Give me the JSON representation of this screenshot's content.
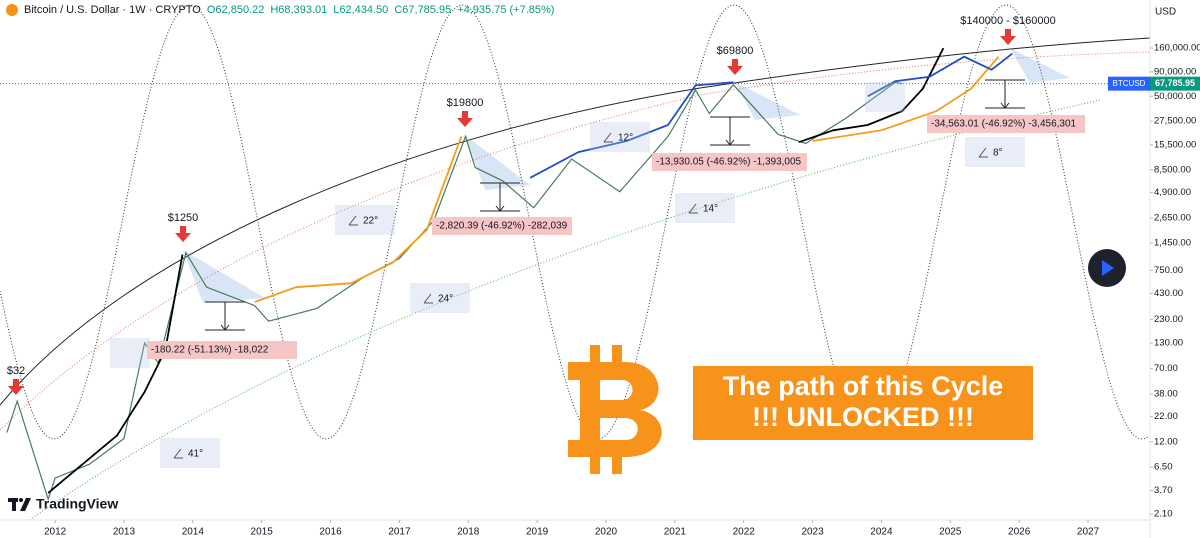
{
  "chart_data": {
    "type": "line",
    "title": "Bitcoin / U.S. Dollar · 1W · CRYPTO",
    "ohlc": [
      "O62,850.22",
      "H68,393.01",
      "L62,434.50",
      "C67,785.95",
      "+4,935.75 (+7.85%)"
    ],
    "currency": "USD",
    "symbol": "BTCUSD",
    "last_value": 67785.95,
    "last_label": "67,785.95",
    "log_scale": true,
    "grid": false,
    "xlim": [
      2011.2,
      2027.9
    ],
    "xticks": [
      2012,
      2013,
      2014,
      2015,
      2016,
      2017,
      2018,
      2019,
      2020,
      2021,
      2022,
      2023,
      2024,
      2025,
      2026,
      2027
    ],
    "ylim": [
      1.82,
      510000
    ],
    "yticks": [
      {
        "value": 160000,
        "label": "160,000.00"
      },
      {
        "value": 90000,
        "label": "90,000.00"
      },
      {
        "value": 50000,
        "label": "50,000.00"
      },
      {
        "value": 27500,
        "label": "27,500.00"
      },
      {
        "value": 15500,
        "label": "15,500.00"
      },
      {
        "value": 8500,
        "label": "8,500.00"
      },
      {
        "value": 4900,
        "label": "4,900.00"
      },
      {
        "value": 2650,
        "label": "2,650.00"
      },
      {
        "value": 1450,
        "label": "1,450.00"
      },
      {
        "value": 750,
        "label": "750.00"
      },
      {
        "value": 430,
        "label": "430.00"
      },
      {
        "value": 230,
        "label": "230.00"
      },
      {
        "value": 130,
        "label": "130.00"
      },
      {
        "value": 70,
        "label": "70.00"
      },
      {
        "value": 38,
        "label": "38.00"
      },
      {
        "value": 22,
        "label": "22.00"
      },
      {
        "value": 12,
        "label": "12.00"
      },
      {
        "value": 6.5,
        "label": "6.50"
      },
      {
        "value": 3.7,
        "label": "3.70"
      },
      {
        "value": 2.1,
        "label": "2.10"
      }
    ],
    "series": [
      {
        "color": "#4a7a5c",
        "x": [
          2011.3,
          2011.45,
          2011.9,
          2012.0,
          2012.5,
          2013.0,
          2013.3,
          2013.5,
          2013.9,
          2014.2,
          2014.9,
          2015.1,
          2015.8,
          2016.5,
          2017.0,
          2017.5,
          2017.96,
          2018.1,
          2018.5,
          2018.95,
          2019.5,
          2020.2,
          2020.9,
          2021.3,
          2021.5,
          2021.85,
          2022.5,
          2022.9,
          2023.5,
          2024.2,
          2024.3
        ],
        "values": [
          15,
          32,
          3,
          5,
          7,
          13,
          130,
          80,
          1150,
          500,
          320,
          220,
          300,
          650,
          1000,
          2500,
          19000,
          9000,
          6500,
          3400,
          11000,
          5000,
          19000,
          58000,
          33000,
          66000,
          20000,
          16000,
          30000,
          70000,
          67785.95
        ]
      },
      {
        "color": "#000000",
        "x": [
          2011.9,
          2012.4,
          2012.9,
          2013.3,
          2013.6,
          2013.85,
          2018.0,
          2022.8,
          2023.3,
          2023.8,
          2024.3,
          2024.6,
          2024.9
        ],
        "values": [
          3.5,
          7,
          14,
          40,
          110,
          1100,
          null,
          16500,
          22000,
          25000,
          35000,
          60000,
          160000
        ]
      },
      {
        "color": "#f59c1a",
        "x": [
          2014.9,
          2015.5,
          2016.3,
          2016.9,
          2017.4,
          2017.9,
          2020.0,
          2023.0,
          2024.0,
          2024.8,
          2025.3,
          2025.7
        ],
        "values": [
          350,
          500,
          550,
          900,
          2000,
          19000,
          null,
          17000,
          22000,
          35000,
          60000,
          130000
        ]
      },
      {
        "color": "#1f4fc4",
        "x": [
          2018.9,
          2019.6,
          2020.3,
          2020.9,
          2021.3,
          2021.85,
          2022.8,
          2023.8,
          2024.2,
          2024.7,
          2025.2,
          2025.6,
          2025.9
        ],
        "values": [
          7000,
          13000,
          17000,
          25000,
          65000,
          70000,
          null,
          50000,
          72000,
          80000,
          130000,
          95000,
          140000
        ]
      }
    ],
    "peaks": [
      "$32",
      "$1250",
      "$19800",
      "$69800",
      "$140000 - $160000"
    ],
    "angles": [
      "41°",
      "24°",
      "22°",
      "12°",
      "14°",
      "8°"
    ],
    "drawdowns": [
      "-180.22 (-51.13%) -18,022",
      "-2,820.39 (-46.92%) -282,039",
      "-13,930.05 (-46.92%) -1,393,005",
      "-34,563.01 (-46.92%) -3,456,301"
    ],
    "banner": [
      "The path of this Cycle",
      "!!! UNLOCKED !!!"
    ],
    "brand": "TradingView"
  }
}
